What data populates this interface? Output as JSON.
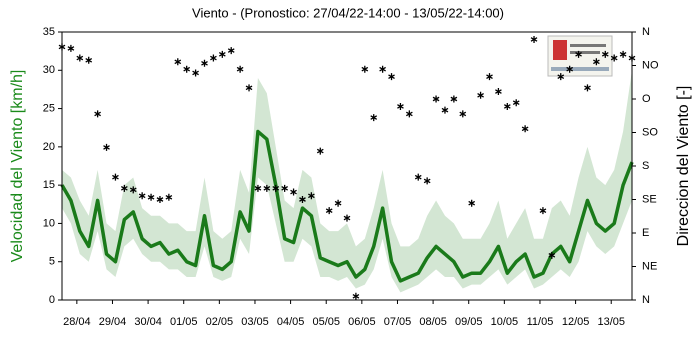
{
  "chart_data": {
    "type": "line",
    "title": "Viento - (Pronostico: 27/04/22-14:00 - 13/05/22-14:00)",
    "y_label": "Velocidad del Viento [km/h]",
    "y2_label": "Direccion del Viento [-]",
    "y_label_color": "#1a8a1a",
    "x": [
      0,
      6,
      12,
      18,
      24,
      30,
      36,
      42,
      48,
      54,
      60,
      66,
      72,
      78,
      84,
      90,
      96,
      102,
      108,
      114,
      120,
      126,
      132,
      138,
      144,
      150,
      156,
      162,
      168,
      174,
      180,
      186,
      192,
      198,
      204,
      210,
      216,
      222,
      228,
      234,
      240,
      246,
      252,
      258,
      264,
      270,
      276,
      282,
      288,
      294,
      300,
      306,
      312,
      318,
      324,
      330,
      336,
      342,
      348,
      354,
      360,
      366,
      372,
      378,
      384
    ],
    "xlim": [
      0,
      384
    ],
    "xticks": [
      {
        "value": 10,
        "label": "28/04"
      },
      {
        "value": 34,
        "label": "29/04"
      },
      {
        "value": 58,
        "label": "30/04"
      },
      {
        "value": 82,
        "label": "01/05"
      },
      {
        "value": 106,
        "label": "02/05"
      },
      {
        "value": 130,
        "label": "03/05"
      },
      {
        "value": 154,
        "label": "04/05"
      },
      {
        "value": 178,
        "label": "05/05"
      },
      {
        "value": 202,
        "label": "06/05"
      },
      {
        "value": 226,
        "label": "07/05"
      },
      {
        "value": 250,
        "label": "08/05"
      },
      {
        "value": 274,
        "label": "09/05"
      },
      {
        "value": 298,
        "label": "10/05"
      },
      {
        "value": 322,
        "label": "11/05"
      },
      {
        "value": 346,
        "label": "12/05"
      },
      {
        "value": 370,
        "label": "13/05"
      }
    ],
    "ylim": [
      0,
      35
    ],
    "yticks": [
      0,
      5,
      10,
      15,
      20,
      25,
      30,
      35
    ],
    "y2lim": [
      0,
      360
    ],
    "y2ticks": [
      {
        "value": 0,
        "label": "N"
      },
      {
        "value": 45,
        "label": "NE"
      },
      {
        "value": 90,
        "label": "E"
      },
      {
        "value": 135,
        "label": "SE"
      },
      {
        "value": 180,
        "label": "S"
      },
      {
        "value": 225,
        "label": "SO"
      },
      {
        "value": 270,
        "label": "O"
      },
      {
        "value": 315,
        "label": "NO"
      },
      {
        "value": 360,
        "label": "N"
      }
    ],
    "band": {
      "color": "#d3e6d3",
      "lower": [
        12,
        10,
        6,
        5,
        9,
        4,
        3,
        7,
        8,
        6,
        5,
        5,
        4,
        4,
        3,
        3,
        7,
        3,
        2.5,
        3,
        8,
        6,
        16,
        15,
        10,
        5,
        5,
        8,
        7,
        3,
        3,
        2.5,
        3,
        1.5,
        2,
        4,
        8,
        3,
        1,
        1.5,
        2,
        3,
        4,
        3,
        3,
        1.5,
        2,
        2,
        3,
        4,
        2,
        3,
        4,
        1.5,
        2,
        3,
        4,
        3,
        5,
        9,
        7,
        6,
        7,
        10,
        13
      ],
      "upper": [
        17,
        16,
        13,
        11,
        17,
        10,
        9,
        15,
        16,
        12,
        11,
        11,
        10,
        10,
        9,
        9,
        16,
        9,
        8,
        9,
        17,
        14,
        29,
        27,
        20,
        13,
        12,
        17,
        16,
        10,
        9,
        9,
        10,
        7,
        8,
        12,
        17,
        10,
        7,
        7,
        8,
        11,
        13,
        11,
        10,
        8,
        8,
        8,
        10,
        13,
        8,
        10,
        12,
        8,
        8,
        12,
        13,
        11,
        16,
        20,
        16,
        15,
        17,
        22,
        30
      ]
    },
    "series": [
      {
        "type": "line",
        "color": "#1a7a1a",
        "values": [
          15,
          13,
          9,
          7,
          13,
          6,
          5,
          10.5,
          11.5,
          8,
          7,
          7.5,
          6,
          6.5,
          5,
          4.5,
          11,
          4.5,
          4,
          5,
          11.5,
          9,
          22,
          21,
          15,
          8,
          7.5,
          12,
          11,
          5.5,
          5,
          4.5,
          5,
          3,
          4,
          7,
          12,
          5,
          2.5,
          3,
          3.5,
          5.5,
          7,
          6,
          5,
          3,
          3.5,
          3.5,
          5,
          7,
          3.5,
          5,
          6,
          3,
          3.5,
          6,
          7,
          5,
          9,
          13,
          10,
          9,
          10,
          15,
          18
        ]
      },
      {
        "type": "scatter",
        "axis": "y2",
        "color": "#000000",
        "values": [
          340,
          338,
          325,
          322,
          250,
          205,
          165,
          150,
          148,
          140,
          138,
          135,
          138,
          320,
          310,
          305,
          318,
          325,
          330,
          335,
          310,
          285,
          150,
          150,
          150,
          150,
          145,
          135,
          140,
          200,
          120,
          130,
          110,
          5,
          310,
          245,
          310,
          300,
          260,
          250,
          165,
          160,
          270,
          255,
          270,
          250,
          130,
          275,
          300,
          280,
          260,
          265,
          230,
          350,
          120,
          60,
          300,
          310,
          330,
          285,
          320,
          330,
          325,
          330,
          325
        ]
      }
    ]
  }
}
